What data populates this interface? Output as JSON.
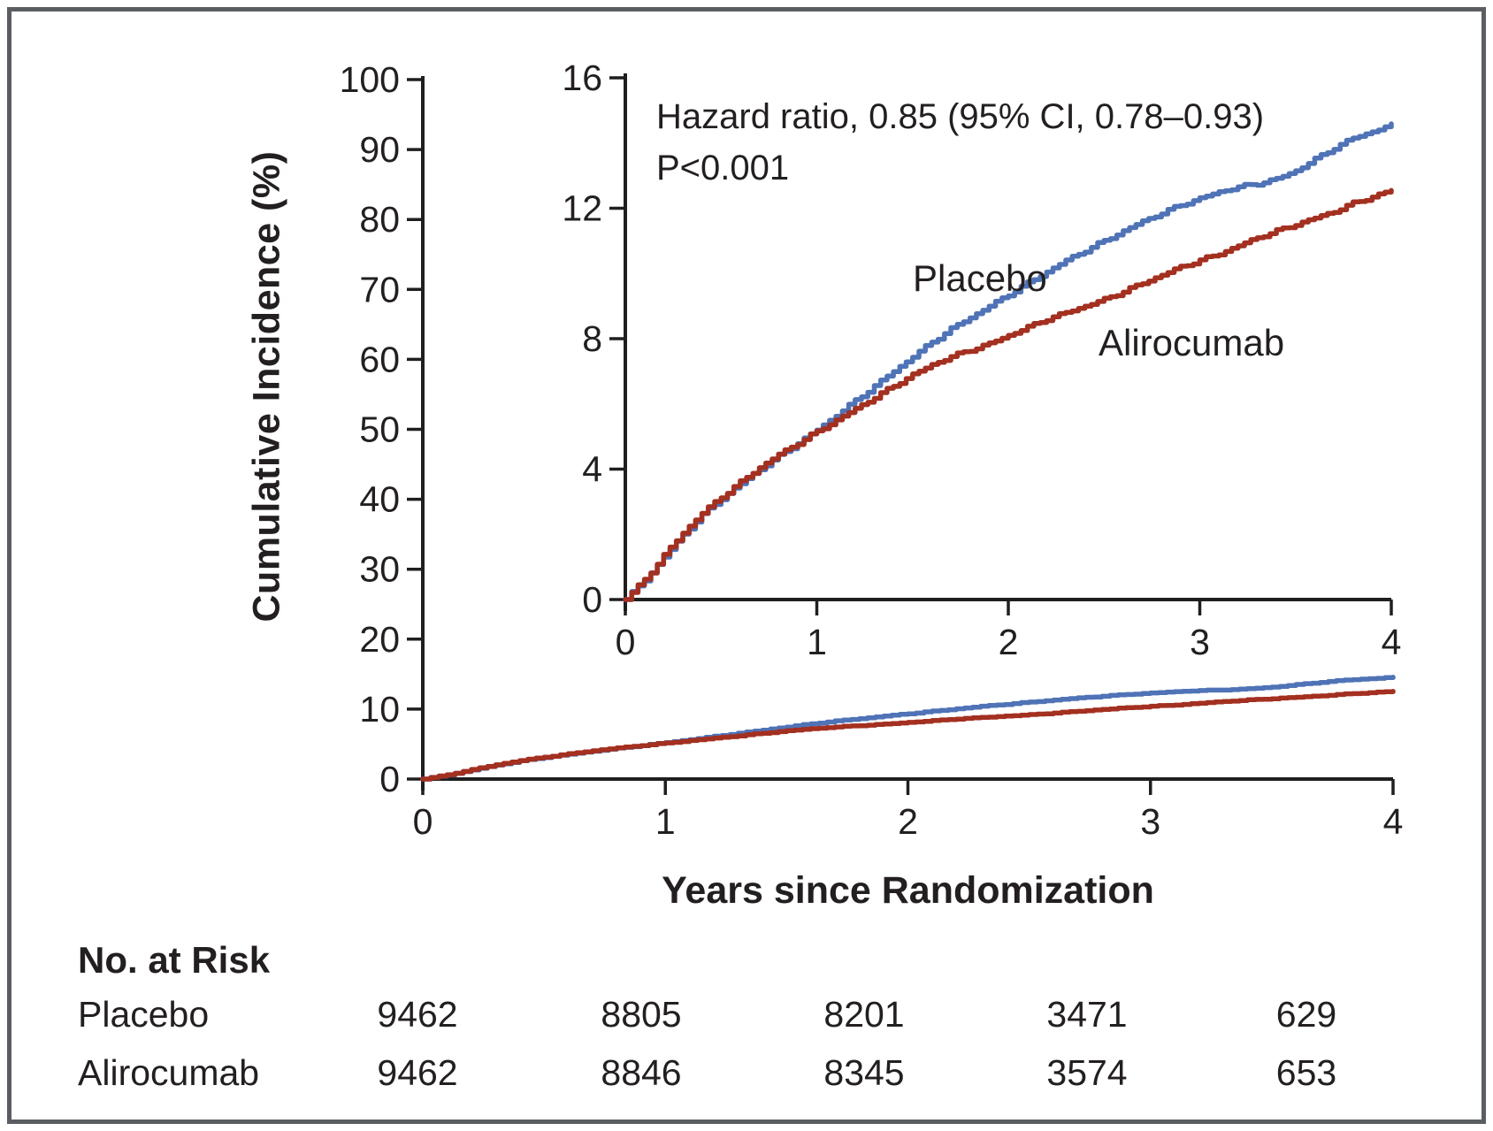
{
  "figure": {
    "background": "#ffffff",
    "frame_color": "#5a5e62",
    "text_color": "#231f20",
    "axis_color": "#1f1f1f"
  },
  "chart_data": {
    "type": "line",
    "title": "",
    "xlabel": "Years since Randomization",
    "ylabel": "Cumulative Incidence (%)",
    "annotation": [
      "Hazard ratio, 0.85 (95% CI, 0.78–0.93)",
      "P<0.001"
    ],
    "main_axis": {
      "xlim": [
        0,
        4
      ],
      "ylim": [
        0,
        100
      ],
      "xticks": [
        0,
        1,
        2,
        3,
        4
      ],
      "yticks": [
        0,
        10,
        20,
        30,
        40,
        50,
        60,
        70,
        80,
        90,
        100
      ]
    },
    "inset_axis": {
      "xlim": [
        0,
        4
      ],
      "ylim": [
        0,
        16
      ],
      "xticks": [
        0,
        1,
        2,
        3,
        4
      ],
      "yticks": [
        0,
        4,
        8,
        12,
        16
      ]
    },
    "x": [
      0,
      0.1,
      0.2,
      0.3,
      0.4,
      0.5,
      0.6,
      0.7,
      0.8,
      0.9,
      1.0,
      1.1,
      1.2,
      1.3,
      1.4,
      1.5,
      1.6,
      1.7,
      1.8,
      1.9,
      2.0,
      2.1,
      2.2,
      2.3,
      2.4,
      2.5,
      2.6,
      2.7,
      2.8,
      2.9,
      3.0,
      3.1,
      3.2,
      3.3,
      3.4,
      3.5,
      3.6,
      3.7,
      3.8,
      3.9,
      4.0
    ],
    "series": [
      {
        "name": "Placebo",
        "color": "#4f73b6",
        "values": [
          0,
          0.6,
          1.3,
          2.0,
          2.6,
          3.1,
          3.55,
          4.0,
          4.4,
          4.8,
          5.2,
          5.65,
          6.1,
          6.55,
          7.0,
          7.45,
          7.9,
          8.3,
          8.65,
          9.0,
          9.35,
          9.7,
          10.05,
          10.4,
          10.7,
          11.0,
          11.3,
          11.6,
          11.85,
          12.1,
          12.3,
          12.5,
          12.65,
          12.75,
          12.9,
          13.15,
          13.5,
          13.85,
          14.15,
          14.35,
          14.55
        ]
      },
      {
        "name": "Alirocumab",
        "color": "#a33020",
        "values": [
          0,
          0.62,
          1.35,
          2.05,
          2.65,
          3.15,
          3.6,
          4.05,
          4.45,
          4.8,
          5.15,
          5.5,
          5.85,
          6.2,
          6.55,
          6.9,
          7.2,
          7.45,
          7.65,
          7.85,
          8.1,
          8.35,
          8.6,
          8.8,
          9.0,
          9.2,
          9.45,
          9.7,
          9.95,
          10.2,
          10.4,
          10.6,
          10.85,
          11.1,
          11.3,
          11.5,
          11.7,
          11.9,
          12.15,
          12.35,
          12.55
        ]
      }
    ]
  },
  "risk_table": {
    "title": "No. at Risk",
    "rows": [
      {
        "label": "Placebo",
        "values": [
          "9462",
          "8805",
          "8201",
          "3471",
          "629"
        ]
      },
      {
        "label": "Alirocumab",
        "values": [
          "9462",
          "8846",
          "8345",
          "3574",
          "653"
        ]
      }
    ]
  }
}
